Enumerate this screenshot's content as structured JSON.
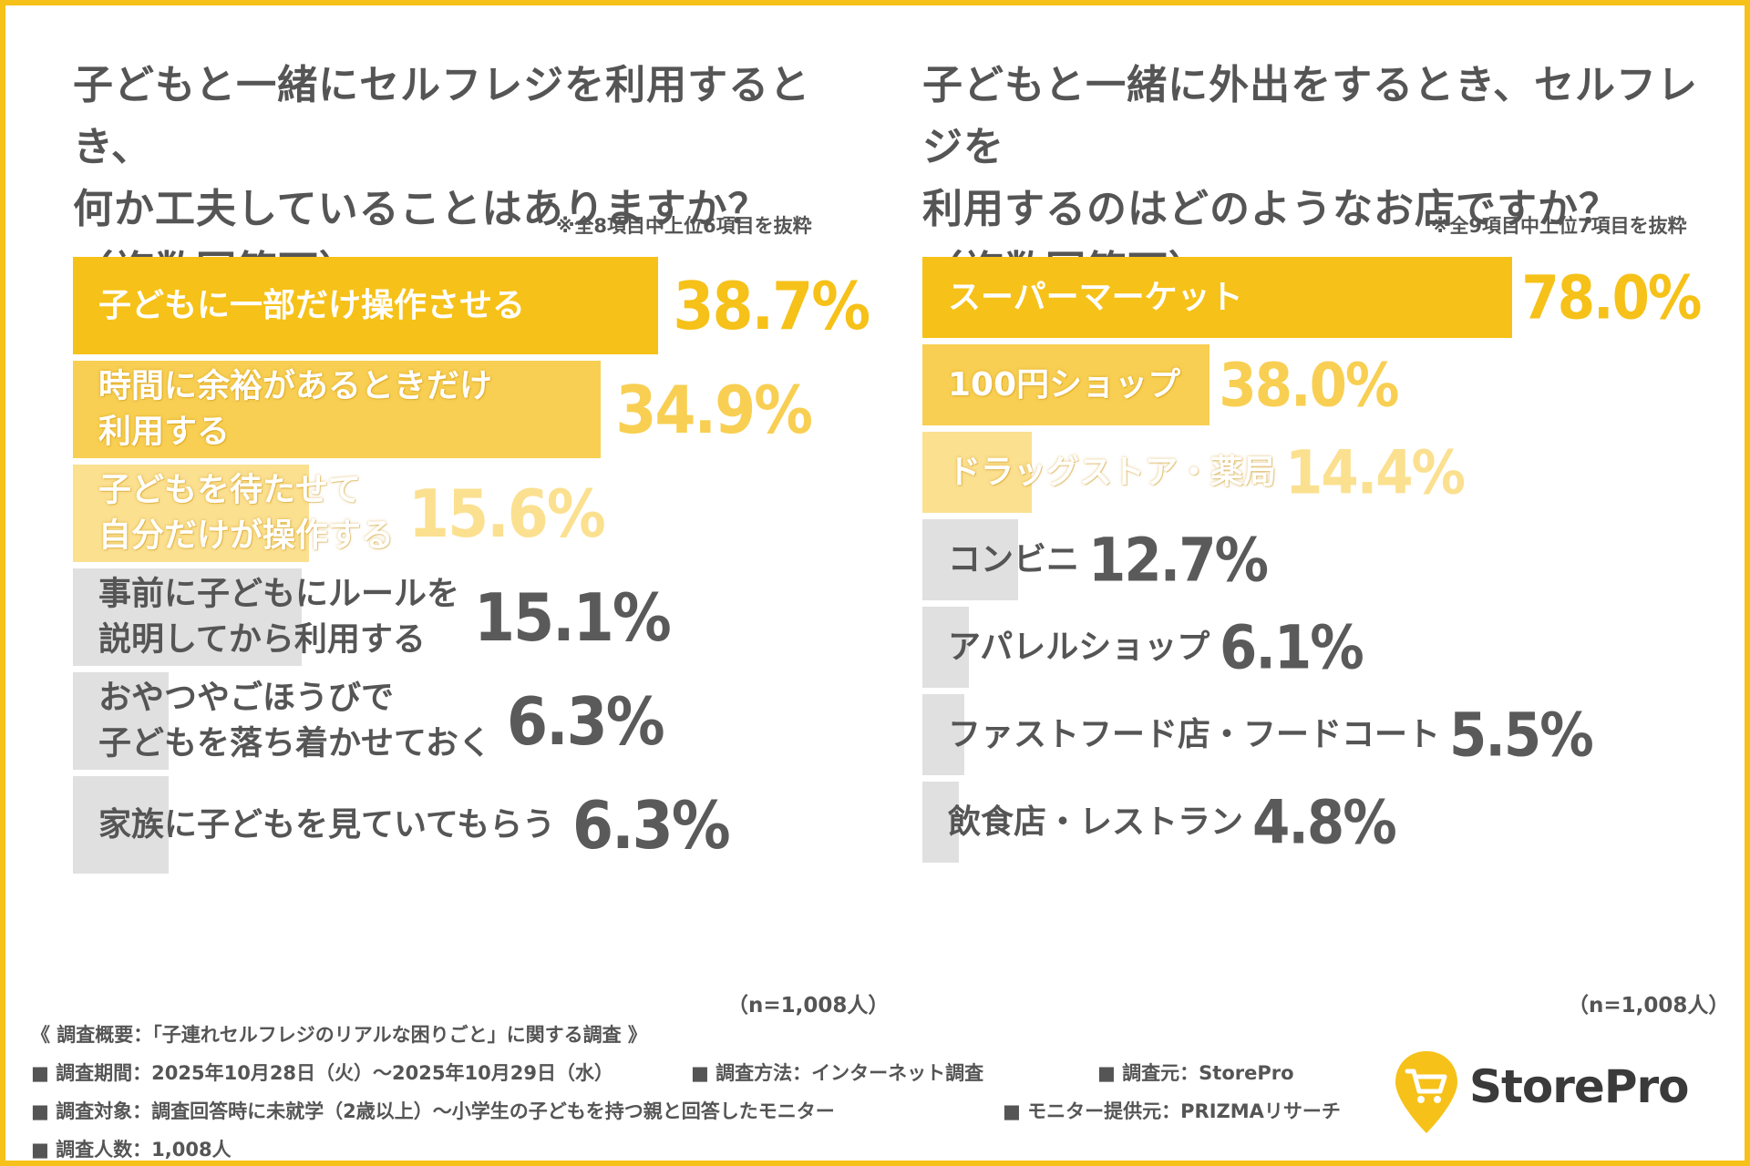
{
  "colors": {
    "frame": "#f6c118",
    "text_gray": "#555555",
    "bar_gray": "#e0e0e0",
    "value_gray": "#5a5a5a",
    "yellow_1": "#f6c118",
    "yellow_2": "#f8cf52",
    "yellow_3": "#fbe090"
  },
  "chart_data": [
    {
      "type": "bar",
      "orientation": "horizontal",
      "title": "子どもと一緒にセルフレジを利用するとき、\n何か工夫していることはありますか？\n（複数回答可）",
      "note": "※全8項目中上位6項目を抜粋",
      "categories": [
        "子どもに一部だけ操作させる",
        "時間に余裕があるときだけ\n利用する",
        "子どもを待たせて\n自分だけが操作する",
        "事前に子どもにルールを\n説明してから利用する",
        "おやつやごほうびで\n子どもを落ち着かせておく",
        "家族に子どもを見ていてもらう"
      ],
      "values": [
        38.7,
        34.9,
        15.6,
        15.1,
        6.3,
        6.3
      ],
      "value_labels": [
        "38.7%",
        "34.9%",
        "15.6%",
        "15.1%",
        "6.3%",
        "6.3%"
      ],
      "unit": "%",
      "xlim": [
        0,
        100
      ],
      "sample_size": "（n=1,008人）"
    },
    {
      "type": "bar",
      "orientation": "horizontal",
      "title": "子どもと一緒に外出をするとき、セルフレジを\n利用するのはどのようなお店ですか？\n（複数回答可）",
      "note": "※全9項目中上位7項目を抜粋",
      "categories": [
        "スーパーマーケット",
        "100円ショップ",
        "ドラッグストア・薬局",
        "コンビニ",
        "アパレルショップ",
        "ファストフード店・フードコート",
        "飲食店・レストラン"
      ],
      "values": [
        78.0,
        38.0,
        14.4,
        12.7,
        6.1,
        5.5,
        4.8
      ],
      "value_labels": [
        "78.0%",
        "38.0%",
        "14.4%",
        "12.7%",
        "6.1%",
        "5.5%",
        "4.8%"
      ],
      "unit": "%",
      "xlim": [
        0,
        100
      ],
      "sample_size": "（n=1,008人）"
    }
  ],
  "survey": {
    "heading": "《 調査概要：「子連れセルフレジのリアルな困りごと」に関する調査 》",
    "period": "■ 調査期間：2025年10月28日（火）〜2025年10月29日（水）",
    "method": "■ 調査方法：インターネット調査",
    "source": "■ 調査元：StorePro",
    "target": "■ 調査対象：調査回答時に未就学（2歳以上）〜小学生の子どもを持つ親と回答したモニター",
    "provider": "■ モニター提供元：PRIZMAリサーチ",
    "count": "■ 調査人数：1,008人"
  },
  "logo": {
    "text": "StorePro",
    "icon": "shopping-cart-pin-icon"
  }
}
